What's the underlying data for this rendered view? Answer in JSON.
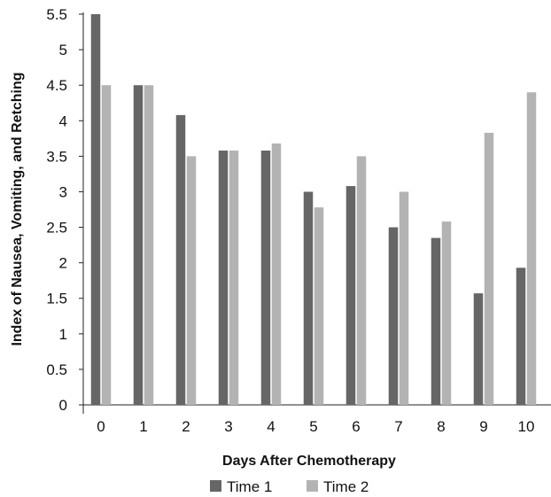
{
  "chart_data": {
    "type": "bar",
    "categories": [
      "0",
      "1",
      "2",
      "3",
      "4",
      "5",
      "6",
      "7",
      "8",
      "9",
      "10"
    ],
    "series": [
      {
        "name": "Time 1",
        "color": "#666666",
        "values": [
          5.5,
          4.5,
          4.08,
          3.58,
          3.58,
          3.0,
          3.08,
          2.5,
          2.35,
          1.57,
          1.93
        ]
      },
      {
        "name": "Time 2",
        "color": "#b3b3b3",
        "values": [
          4.5,
          4.5,
          3.5,
          3.58,
          3.68,
          2.78,
          3.5,
          3.0,
          2.58,
          3.83,
          4.4
        ]
      }
    ],
    "xlabel": "Days After Chemotherapy",
    "ylabel": "Index of Nausea, Vomiting, and Retching",
    "ylim": [
      0,
      5.5
    ],
    "yticks": [
      "0",
      "0.5",
      "1",
      "1.5",
      "2",
      "2.5",
      "3",
      "3.5",
      "4",
      "4.5",
      "5",
      "5.5"
    ],
    "grid": false,
    "legend_position": "bottom"
  }
}
